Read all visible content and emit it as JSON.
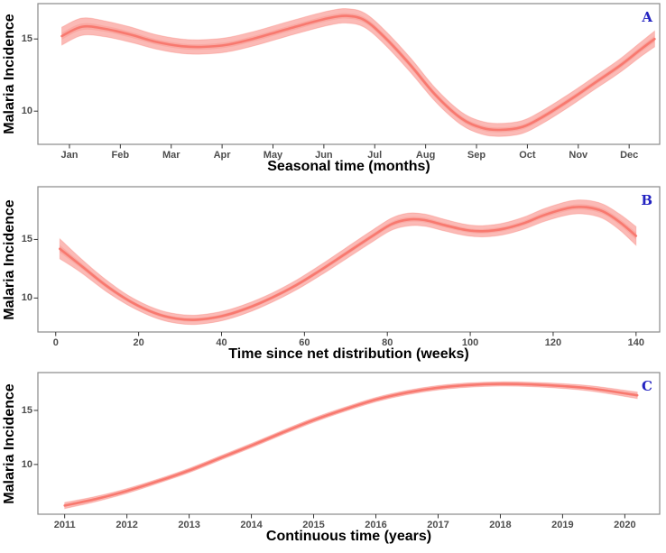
{
  "figure": {
    "background": "#ffffff",
    "panel_border_color": "#8a8a8a",
    "tick_mark_color": "#333333",
    "tick_label_color": "#4d4d4d",
    "axis_title_color": "#000000",
    "panel_label_color": "#2323c1",
    "line_color": "#f8766d",
    "ribbon_color": "#f8766d"
  },
  "chart_data": [
    {
      "type": "area",
      "panel_label": "A",
      "ylabel": "Malaria Incidence",
      "xlabel": "Seasonal time (months)",
      "x_tick_labels": [
        "Jan",
        "Feb",
        "Mar",
        "Apr",
        "May",
        "Jun",
        "Jul",
        "Aug",
        "Sep",
        "Oct",
        "Nov",
        "Dec"
      ],
      "x_tick_values": [
        1,
        2,
        3,
        4,
        5,
        6,
        7,
        8,
        9,
        10,
        11,
        12
      ],
      "y_tick_values": [
        10,
        15
      ],
      "x_range": [
        0.38,
        12.6
      ],
      "y_range": [
        7.7,
        17.45
      ],
      "grid": false,
      "legend": "none",
      "series": {
        "name": "smoothed malaria incidence (seasonal) with confidence band",
        "x": [
          0.85,
          1.25,
          1.7,
          2.2,
          2.7,
          3.2,
          3.6,
          4.1,
          4.6,
          5.1,
          5.6,
          6.1,
          6.45,
          6.8,
          7.2,
          7.7,
          8.2,
          8.7,
          9.1,
          9.45,
          9.9,
          10.3,
          10.8,
          11.3,
          11.8,
          12.2,
          12.5
        ],
        "y": [
          15.2,
          15.85,
          15.7,
          15.3,
          14.8,
          14.5,
          14.45,
          14.6,
          15.0,
          15.5,
          16.0,
          16.45,
          16.6,
          16.3,
          15.1,
          13.2,
          11.1,
          9.5,
          8.85,
          8.7,
          8.9,
          9.6,
          10.7,
          11.9,
          13.1,
          14.2,
          15.0
        ],
        "band_half_width": [
          0.62,
          0.6,
          0.55,
          0.53,
          0.5,
          0.5,
          0.5,
          0.5,
          0.5,
          0.5,
          0.5,
          0.5,
          0.5,
          0.5,
          0.5,
          0.5,
          0.47,
          0.45,
          0.45,
          0.45,
          0.45,
          0.45,
          0.45,
          0.45,
          0.47,
          0.5,
          0.55
        ]
      }
    },
    {
      "type": "area",
      "panel_label": "B",
      "ylabel": "Malaria Incidence",
      "xlabel": "Time since net distribution (weeks)",
      "x_tick_labels": [
        "0",
        "20",
        "40",
        "60",
        "80",
        "100",
        "120",
        "140"
      ],
      "x_tick_values": [
        0,
        20,
        40,
        60,
        80,
        100,
        120,
        140
      ],
      "y_tick_values": [
        10,
        15
      ],
      "x_range": [
        -4.3,
        145.7
      ],
      "y_range": [
        7.1,
        19.5
      ],
      "grid": false,
      "legend": "none",
      "series": {
        "name": "smoothed malaria incidence since net distribution with confidence band",
        "x": [
          1,
          6,
          12,
          18,
          24,
          29,
          34,
          40,
          46,
          52,
          58,
          64,
          70,
          76,
          81,
          85,
          89,
          94,
          99,
          103,
          108,
          113,
          118,
          124,
          128,
          132,
          136,
          140
        ],
        "y": [
          14.2,
          12.8,
          11.1,
          9.7,
          8.7,
          8.25,
          8.15,
          8.45,
          9.1,
          10.0,
          11.1,
          12.4,
          13.8,
          15.2,
          16.3,
          16.7,
          16.65,
          16.2,
          15.8,
          15.7,
          15.9,
          16.4,
          17.1,
          17.7,
          17.75,
          17.4,
          16.5,
          15.3
        ],
        "band_half_width": [
          0.85,
          0.6,
          0.5,
          0.42,
          0.4,
          0.4,
          0.4,
          0.4,
          0.4,
          0.4,
          0.42,
          0.45,
          0.48,
          0.5,
          0.52,
          0.55,
          0.52,
          0.5,
          0.48,
          0.48,
          0.5,
          0.52,
          0.55,
          0.58,
          0.6,
          0.62,
          0.68,
          0.8
        ]
      }
    },
    {
      "type": "area",
      "panel_label": "C",
      "ylabel": "Malaria Incidence",
      "xlabel": "Continuous time (years)",
      "x_tick_labels": [
        "2011",
        "2012",
        "2013",
        "2014",
        "2015",
        "2016",
        "2017",
        "2018",
        "2019",
        "2020"
      ],
      "x_tick_values": [
        2011,
        2012,
        2013,
        2014,
        2015,
        2016,
        2017,
        2018,
        2019,
        2020
      ],
      "y_tick_values": [
        10,
        15
      ],
      "x_range": [
        2010.57,
        2020.56
      ],
      "y_range": [
        5.4,
        18.5
      ],
      "grid": false,
      "legend": "none",
      "series": {
        "name": "smoothed malaria incidence over continuous time with confidence band",
        "x": [
          2011.0,
          2011.5,
          2012.0,
          2012.5,
          2013.0,
          2013.5,
          2014.0,
          2014.5,
          2015.0,
          2015.5,
          2016.0,
          2016.5,
          2017.0,
          2017.5,
          2018.0,
          2018.5,
          2019.0,
          2019.5,
          2020.2
        ],
        "y": [
          6.2,
          6.8,
          7.55,
          8.45,
          9.45,
          10.6,
          11.75,
          12.95,
          14.1,
          15.1,
          16.0,
          16.65,
          17.1,
          17.35,
          17.45,
          17.4,
          17.25,
          17.0,
          16.4
        ],
        "band_half_width": [
          0.28,
          0.24,
          0.22,
          0.2,
          0.2,
          0.2,
          0.2,
          0.2,
          0.2,
          0.2,
          0.2,
          0.2,
          0.2,
          0.2,
          0.2,
          0.2,
          0.22,
          0.25,
          0.3
        ]
      }
    }
  ]
}
